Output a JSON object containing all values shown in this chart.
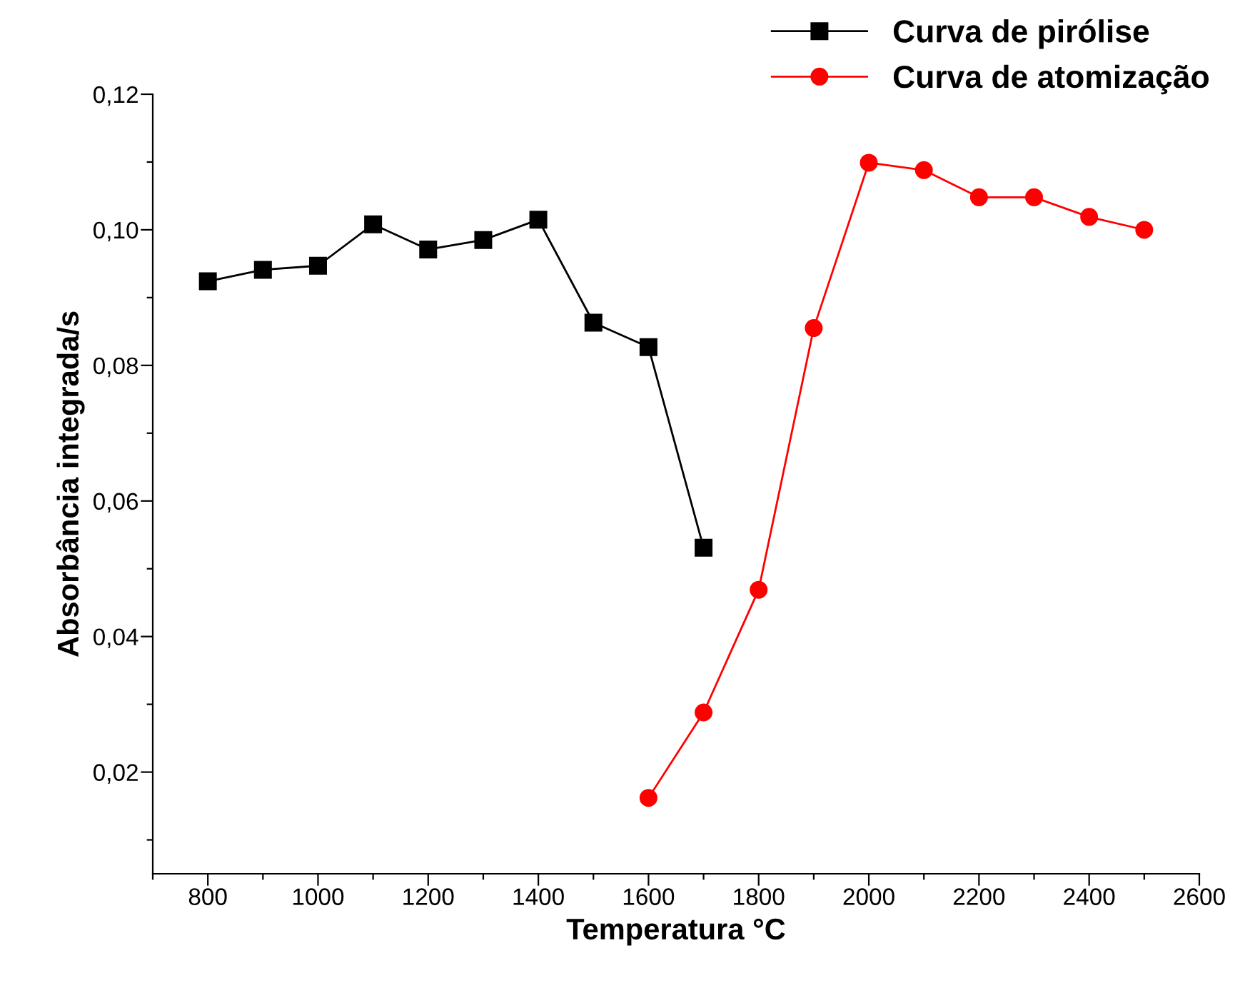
{
  "chart_data": {
    "type": "line",
    "xlabel": "Temperatura °C",
    "ylabel": "Absorbância integrada/s",
    "x": [
      800,
      900,
      1000,
      1100,
      1200,
      1300,
      1400,
      1500,
      1600,
      1700,
      1800,
      1900,
      2000,
      2100,
      2200,
      2300,
      2400,
      2500
    ],
    "series": [
      {
        "name": "Curva de pirólise",
        "color": "#000000",
        "marker": "square",
        "values": [
          0.0924,
          0.0941,
          0.0947,
          0.1008,
          0.0971,
          0.0985,
          0.1015,
          0.0863,
          0.0827,
          0.0531,
          null,
          null,
          null,
          null,
          null,
          null,
          null,
          null
        ]
      },
      {
        "name": "Curva de atomização",
        "color": "#ff0000",
        "marker": "circle",
        "values": [
          null,
          null,
          null,
          null,
          null,
          null,
          null,
          null,
          0.0162,
          0.0288,
          0.0469,
          0.0855,
          0.1099,
          0.1088,
          0.1048,
          0.1048,
          0.1019,
          0.1
        ]
      }
    ],
    "xlim": [
      700,
      2600
    ],
    "ylim": [
      0.005,
      0.12
    ],
    "xticks": [
      {
        "value": 700,
        "label": null
      },
      800,
      {
        "value": 900,
        "label": null
      },
      1000,
      {
        "value": 1100,
        "label": null
      },
      1200,
      {
        "value": 1300,
        "label": null
      },
      1400,
      {
        "value": 1500,
        "label": null
      },
      1600,
      {
        "value": 1700,
        "label": null
      },
      1800,
      {
        "value": 1900,
        "label": null
      },
      2000,
      {
        "value": 2100,
        "label": null
      },
      2200,
      {
        "value": 2300,
        "label": null
      },
      2400,
      {
        "value": 2500,
        "label": null
      },
      2600
    ],
    "yticks": [
      {
        "value": 0.01,
        "label": null
      },
      {
        "value": 0.02,
        "label": "0,02"
      },
      {
        "value": 0.03,
        "label": null
      },
      {
        "value": 0.04,
        "label": "0,04"
      },
      {
        "value": 0.05,
        "label": null
      },
      {
        "value": 0.06,
        "label": "0,06"
      },
      {
        "value": 0.07,
        "label": null
      },
      {
        "value": 0.08,
        "label": "0,08"
      },
      {
        "value": 0.09,
        "label": null
      },
      {
        "value": 0.1,
        "label": "0,10"
      },
      {
        "value": 0.11,
        "label": null
      },
      {
        "value": 0.12,
        "label": "0,12"
      }
    ],
    "legend": "top right",
    "grid": false,
    "line_style": "solid"
  }
}
